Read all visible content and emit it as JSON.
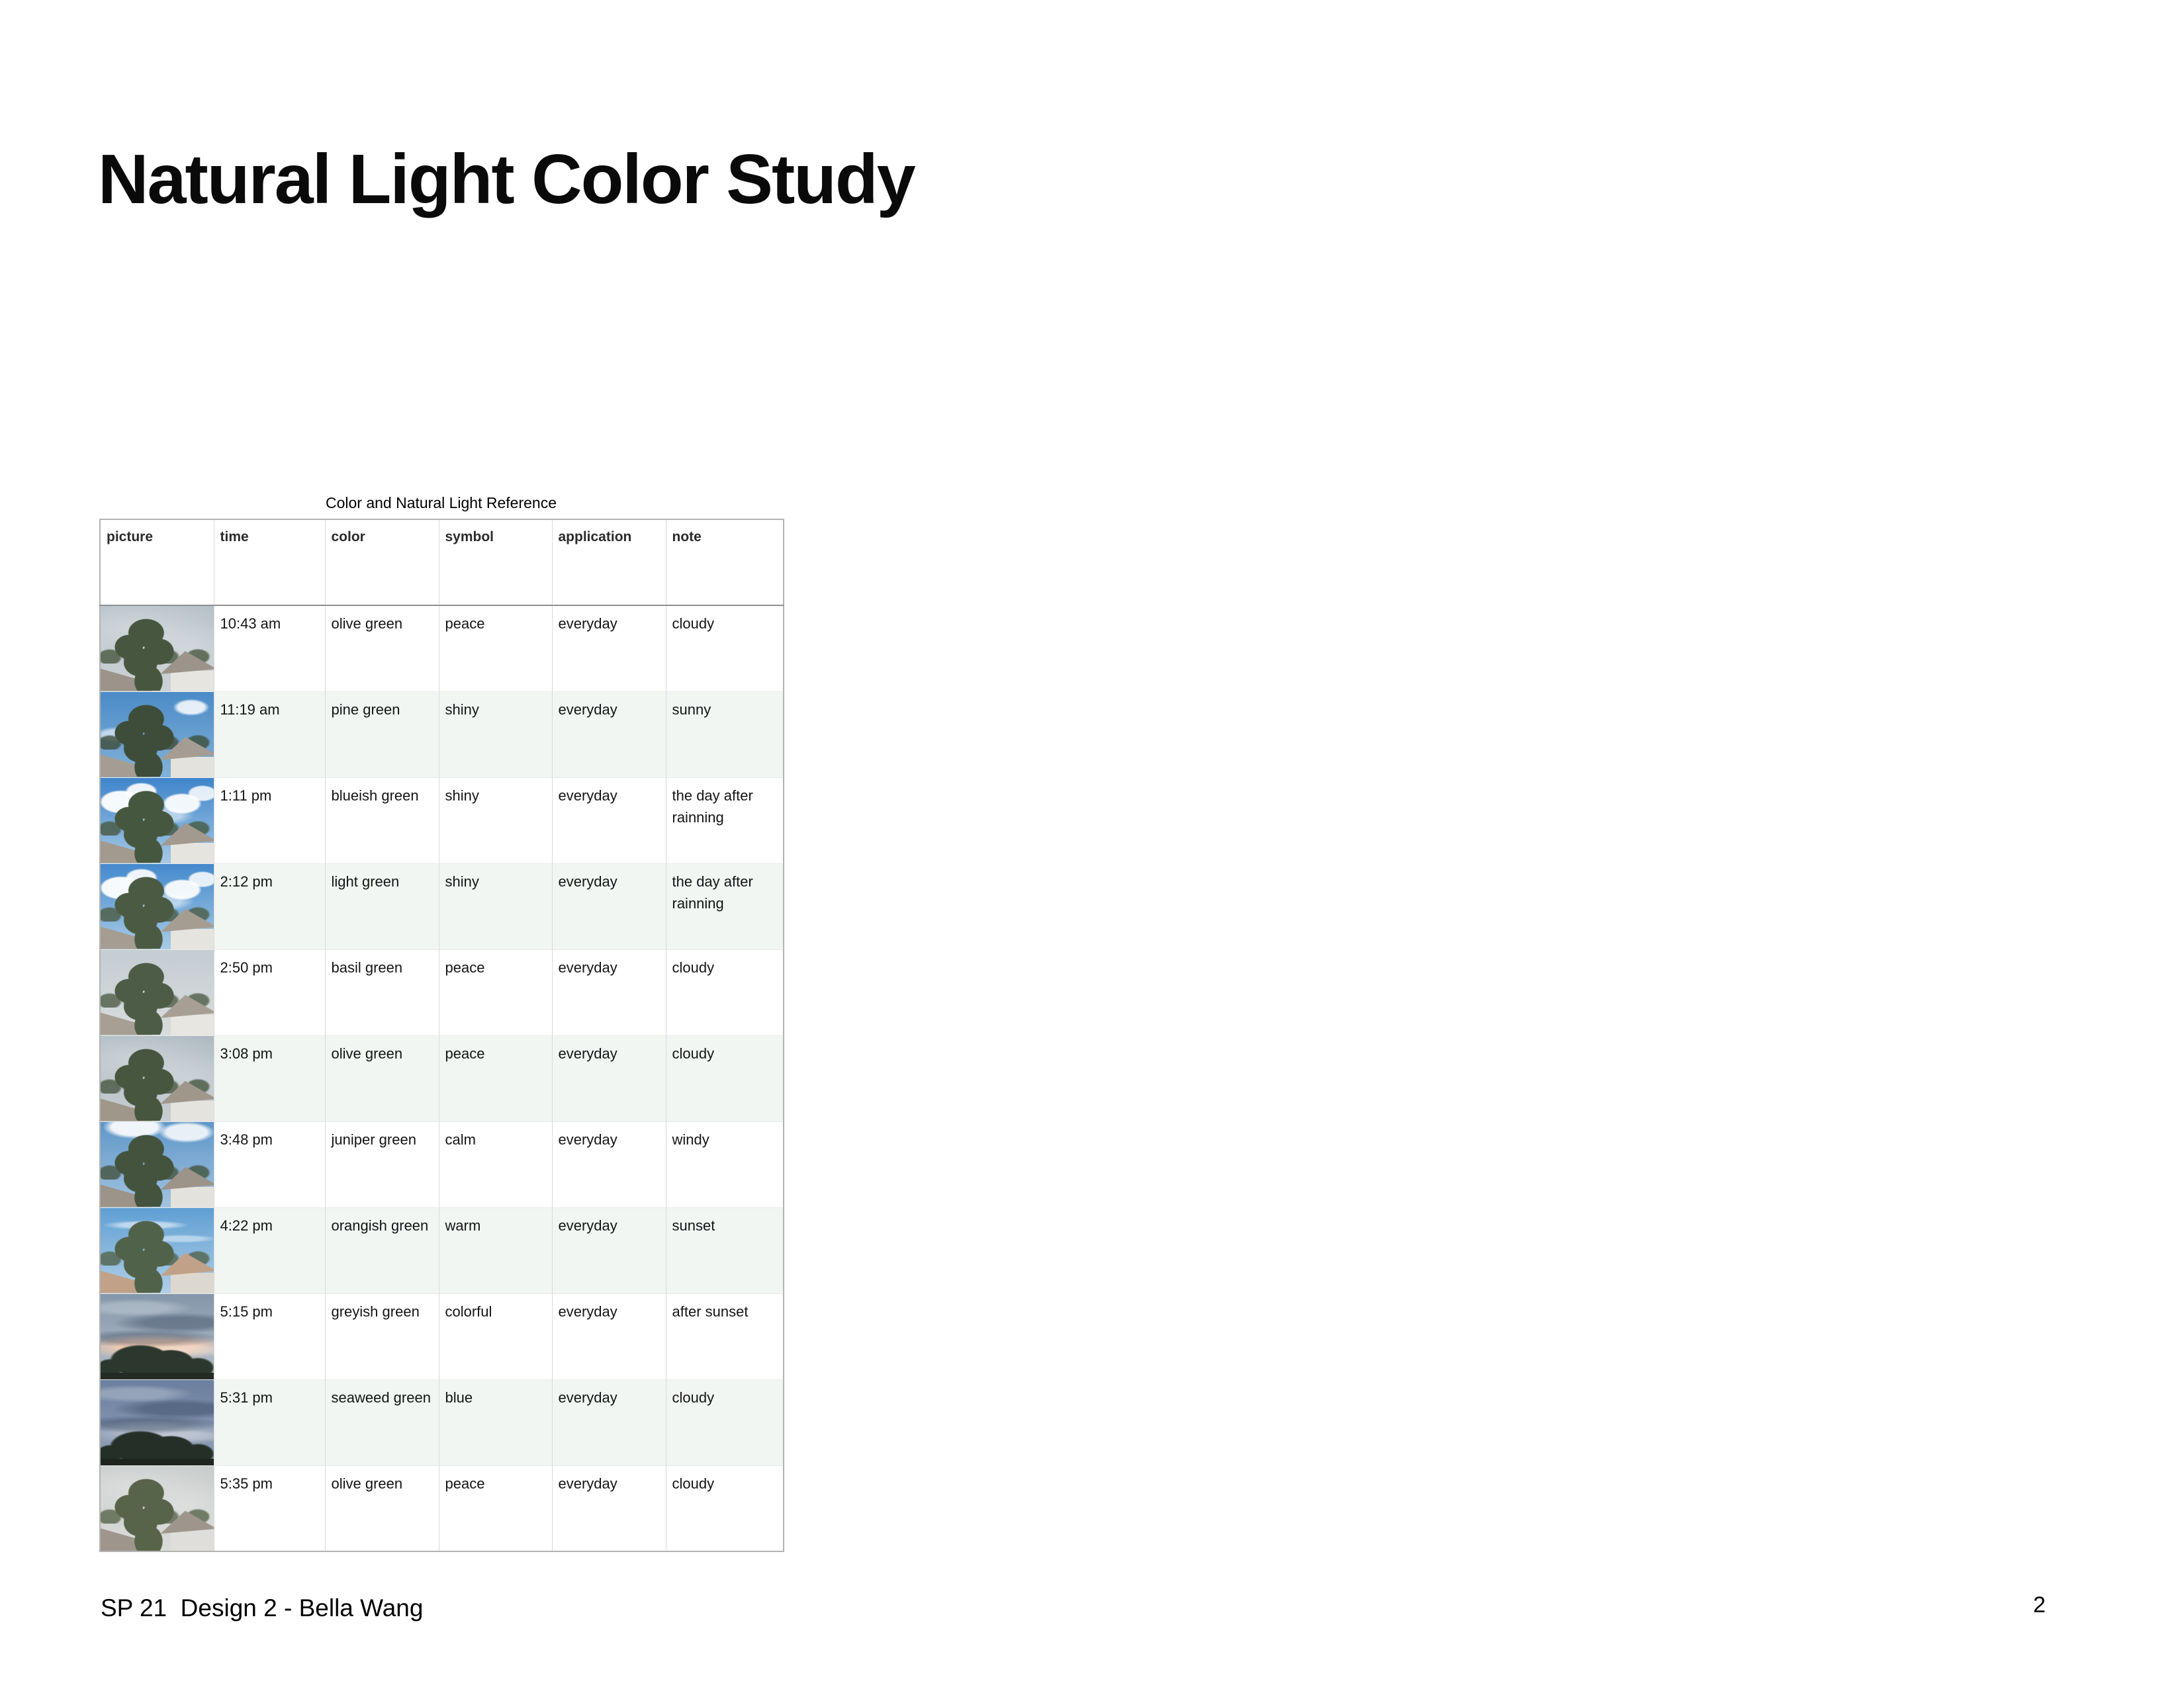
{
  "page": {
    "title": "Natural Light Color Study",
    "footer_left": "SP 21  Design 2 - Bella Wang",
    "page_number": "2"
  },
  "colors": {
    "row_alt": "#f1f6f3",
    "border_outer": "#b3b3b3",
    "border_inner": "#dadada",
    "border_row": "#e8ebe9",
    "header_rule": "#8f8f8f",
    "text": "#141414"
  },
  "table": {
    "caption": "Color and Natural Light Reference",
    "columns": [
      "picture",
      "time",
      "color",
      "symbol",
      "application",
      "note"
    ],
    "rows": [
      {
        "time": "10:43 am",
        "color": "olive green",
        "symbol": "peace",
        "application": "everyday",
        "note": "cloudy",
        "photo": {
          "variant": "day",
          "clouds": "overcast",
          "sky": [
            "#b5c0c8",
            "#cdd3d5"
          ],
          "tree": "#47573f",
          "tree_light": "#6d7d5c",
          "roof": "#9c948a",
          "house": "#e7e5e0"
        }
      },
      {
        "time": "11:19 am",
        "color": "pine green",
        "symbol": "shiny",
        "application": "everyday",
        "note": "sunny",
        "photo": {
          "variant": "day",
          "clouds": "light",
          "sky": [
            "#4b8bc7",
            "#83b2d8"
          ],
          "tree": "#3d4d39",
          "tree_light": "#5c6c4e",
          "roof": "#a59d93",
          "house": "#e3e2dd"
        }
      },
      {
        "time": "1:11 pm",
        "color": "blueish green",
        "symbol": "shiny",
        "application": "everyday",
        "note": "the day after rainning",
        "photo": {
          "variant": "day",
          "clouds": "cumulus",
          "sky": [
            "#3f85cb",
            "#a5c9e5"
          ],
          "tree": "#46573f",
          "tree_light": "#68785a",
          "roof": "#a2998f",
          "house": "#e6e4df"
        }
      },
      {
        "time": "2:12 pm",
        "color": "light green",
        "symbol": "shiny",
        "application": "everyday",
        "note": "the day after rainning",
        "photo": {
          "variant": "day",
          "clouds": "cumulus",
          "sky": [
            "#4489cd",
            "#a9cce6"
          ],
          "tree": "#4b5b43",
          "tree_light": "#6f7f5e",
          "roof": "#a69d92",
          "house": "#e6e4df"
        }
      },
      {
        "time": "2:50 pm",
        "color": "basil green",
        "symbol": "peace",
        "application": "everyday",
        "note": "cloudy",
        "photo": {
          "variant": "day",
          "clouds": "none",
          "sky": [
            "#c5cdd2",
            "#d8dcdd"
          ],
          "tree": "#4d5c46",
          "tree_light": "#707f5f",
          "roof": "#a89f94",
          "house": "#e8e6e1"
        }
      },
      {
        "time": "3:08 pm",
        "color": "olive green",
        "symbol": "peace",
        "application": "everyday",
        "note": "cloudy",
        "photo": {
          "variant": "day",
          "clouds": "overcast",
          "sky": [
            "#adb9c1",
            "#c7ced2"
          ],
          "tree": "#46563f",
          "tree_light": "#687759",
          "roof": "#a0978b",
          "house": "#e5e3de"
        }
      },
      {
        "time": "3:48 pm",
        "color": "juniper green",
        "symbol": "calm",
        "application": "everyday",
        "note": "windy",
        "photo": {
          "variant": "day",
          "clouds": "top",
          "sky": [
            "#5e96c8",
            "#a3c4e0"
          ],
          "tree": "#43533d",
          "tree_light": "#647457",
          "roof": "#9c9389",
          "house": "#e4e2dd"
        }
      },
      {
        "time": "4:22 pm",
        "color": "orangish green",
        "symbol": "warm",
        "application": "everyday",
        "note": "sunset",
        "photo": {
          "variant": "day",
          "clouds": "wisps",
          "sky": [
            "#5f9fd3",
            "#b0cfe7"
          ],
          "tree": "#51624a",
          "tree_light": "#93a06b",
          "roof": "#c1a288",
          "house": "#ddd8cf"
        }
      },
      {
        "time": "5:15 pm",
        "color": "greyish green",
        "symbol": "colorful",
        "application": "everyday",
        "note": "after sunset",
        "photo": {
          "variant": "dusk",
          "clouds": "streaks",
          "sky": [
            "#8496aa",
            "#b6c0cb"
          ],
          "horizon": "#eccab3",
          "tree": "#2c382e",
          "ground": "#232b24"
        }
      },
      {
        "time": "5:31 pm",
        "color": "seaweed green",
        "symbol": "blue",
        "application": "everyday",
        "note": "cloudy",
        "photo": {
          "variant": "dusk",
          "clouds": "streaks",
          "sky": [
            "#6b7f9e",
            "#91a1b8"
          ],
          "horizon": "#a9b4c4",
          "tree": "#242f27",
          "ground": "#1e251f"
        }
      },
      {
        "time": "5:35 pm",
        "color": "olive green",
        "symbol": "peace",
        "application": "everyday",
        "note": "cloudy",
        "photo": {
          "variant": "day",
          "clouds": "overcast",
          "sky": [
            "#c7cbca",
            "#dadbd9"
          ],
          "tree": "#57644a",
          "tree_light": "#99a26e",
          "roof": "#9e968c",
          "house": "#dfdeda"
        }
      }
    ]
  }
}
